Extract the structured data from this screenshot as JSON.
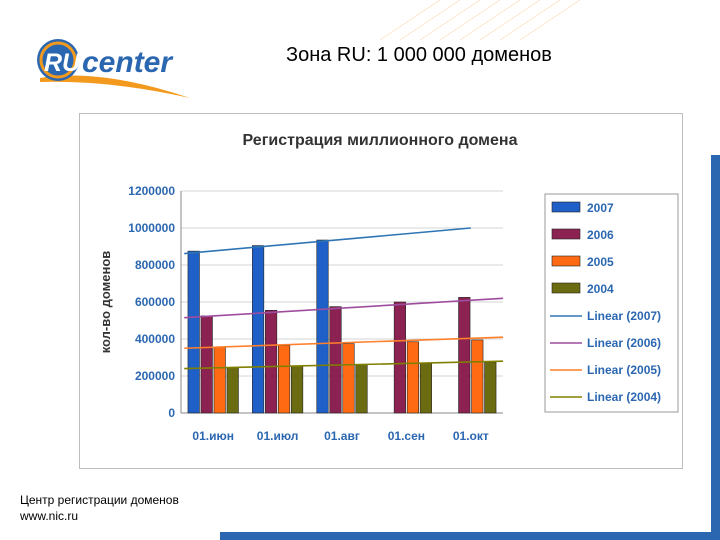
{
  "slide": {
    "title": "Зона RU: 1 000 000 доменов",
    "footer_line1": "Центр регистрации доменов",
    "footer_line2": "www.nic.ru"
  },
  "logo": {
    "letters": "RU",
    "word": "center"
  },
  "colors": {
    "brand_blue": "#2b67b0",
    "brand_orange": "#f39a1e"
  },
  "chart_data": {
    "type": "bar",
    "title": "Регистрация миллионного домена",
    "ylabel": "кол-во доменов",
    "xlabel": "",
    "ylim": [
      0,
      1200000
    ],
    "yticks": [
      0,
      200000,
      400000,
      600000,
      800000,
      1000000,
      1200000
    ],
    "ytick_labels": [
      "0",
      "200000",
      "400000",
      "600000",
      "800000",
      "1000000",
      "1200000"
    ],
    "categories": [
      "01.июн",
      "01.июл",
      "01.авг",
      "01.сен",
      "01.окт"
    ],
    "series": [
      {
        "name": "2007",
        "color": "#1f5fc8",
        "values": [
          875000,
          905000,
          935000,
          null,
          null
        ]
      },
      {
        "name": "2006",
        "color": "#8b2252",
        "values": [
          525000,
          555000,
          575000,
          600000,
          625000
        ]
      },
      {
        "name": "2005",
        "color": "#ff6a13",
        "values": [
          355000,
          365000,
          375000,
          385000,
          395000
        ]
      },
      {
        "name": "2004",
        "color": "#6b6b12",
        "values": [
          245000,
          255000,
          262000,
          268000,
          275000
        ]
      }
    ],
    "trendlines": [
      {
        "name": "Linear (2007)",
        "color": "#2e75b6",
        "start": 862000,
        "end": 1000000
      },
      {
        "name": "Linear (2006)",
        "color": "#9e4d9e",
        "start": 515000,
        "end": 620000
      },
      {
        "name": "Linear (2005)",
        "color": "#ff7f2a",
        "start": 350000,
        "end": 410000
      },
      {
        "name": "Linear (2004)",
        "color": "#808000",
        "start": 240000,
        "end": 280000
      }
    ],
    "grid": true,
    "legend_position": "right"
  }
}
